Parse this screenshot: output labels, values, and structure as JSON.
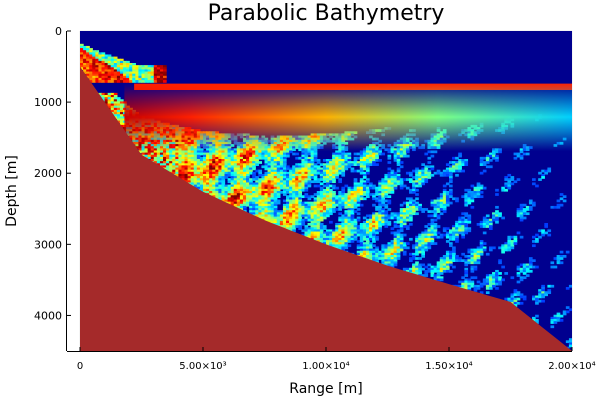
{
  "chart_data": {
    "type": "heatmap",
    "title": "Parabolic Bathymetry",
    "xlabel": "Range [m]",
    "ylabel": "Depth [m]",
    "xlim": [
      0,
      20000
    ],
    "ylim": [
      0,
      4500
    ],
    "y_inverted": true,
    "grid": true,
    "legend": "none",
    "colormap": "jet",
    "x_ticks": [
      {
        "value": 0,
        "label": "0"
      },
      {
        "value": 5000,
        "label": "5.00×10³"
      },
      {
        "value": 10000,
        "label": "1.00×10⁴"
      },
      {
        "value": 15000,
        "label": "1.50×10⁴"
      },
      {
        "value": 20000,
        "label": "2.00×10⁴"
      }
    ],
    "y_ticks": [
      {
        "value": 0,
        "label": "0"
      },
      {
        "value": 1000,
        "label": "1000"
      },
      {
        "value": 2000,
        "label": "2000"
      },
      {
        "value": 3000,
        "label": "3000"
      },
      {
        "value": 4000,
        "label": "4000"
      }
    ],
    "source": {
      "range_m": 0,
      "depth_m": 0
    },
    "sound_channel_depth_m": 790,
    "bathymetry": {
      "shape": "parabolic",
      "depth_at_range_0_m": 500,
      "depth_at_range_max_m": 4500,
      "points": [
        [
          0,
          500
        ],
        [
          2500,
          1740
        ],
        [
          5000,
          2260
        ],
        [
          7500,
          2660
        ],
        [
          10000,
          3000
        ],
        [
          12500,
          3300
        ],
        [
          15000,
          3560
        ],
        [
          17500,
          3810
        ],
        [
          20000,
          4500
        ]
      ]
    },
    "colors": {
      "background_field": "#00008f",
      "seabed": "#a52a2a",
      "axis": "#000000",
      "grid": "#e8e8e8"
    }
  }
}
